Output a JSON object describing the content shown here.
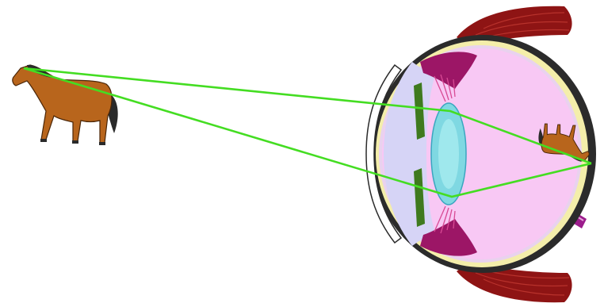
{
  "colors": {
    "background": "#ffffff",
    "light_ray": "#44dd22",
    "muscle": "#8e1414",
    "muscle_stripe": "#b8322c",
    "sclera_outer": "#2b2b2b",
    "sclera_yellow": "#f4eeaa",
    "vitreous": "#f8c8f4",
    "aqueous": "#d6d4f6",
    "cornea": "#ffffff",
    "iris": "#3f7a1e",
    "ciliary_body": "#9c1666",
    "lens": "#7fd8e2",
    "optic_nerve": "#9c1c8c",
    "horse_body": "#b8651c",
    "horse_mane": "#2a2a2a"
  },
  "figure": {
    "icons": [
      "horse-icon",
      "eye-icon",
      "inverted-horse-image-icon"
    ],
    "ray_count": 2
  }
}
